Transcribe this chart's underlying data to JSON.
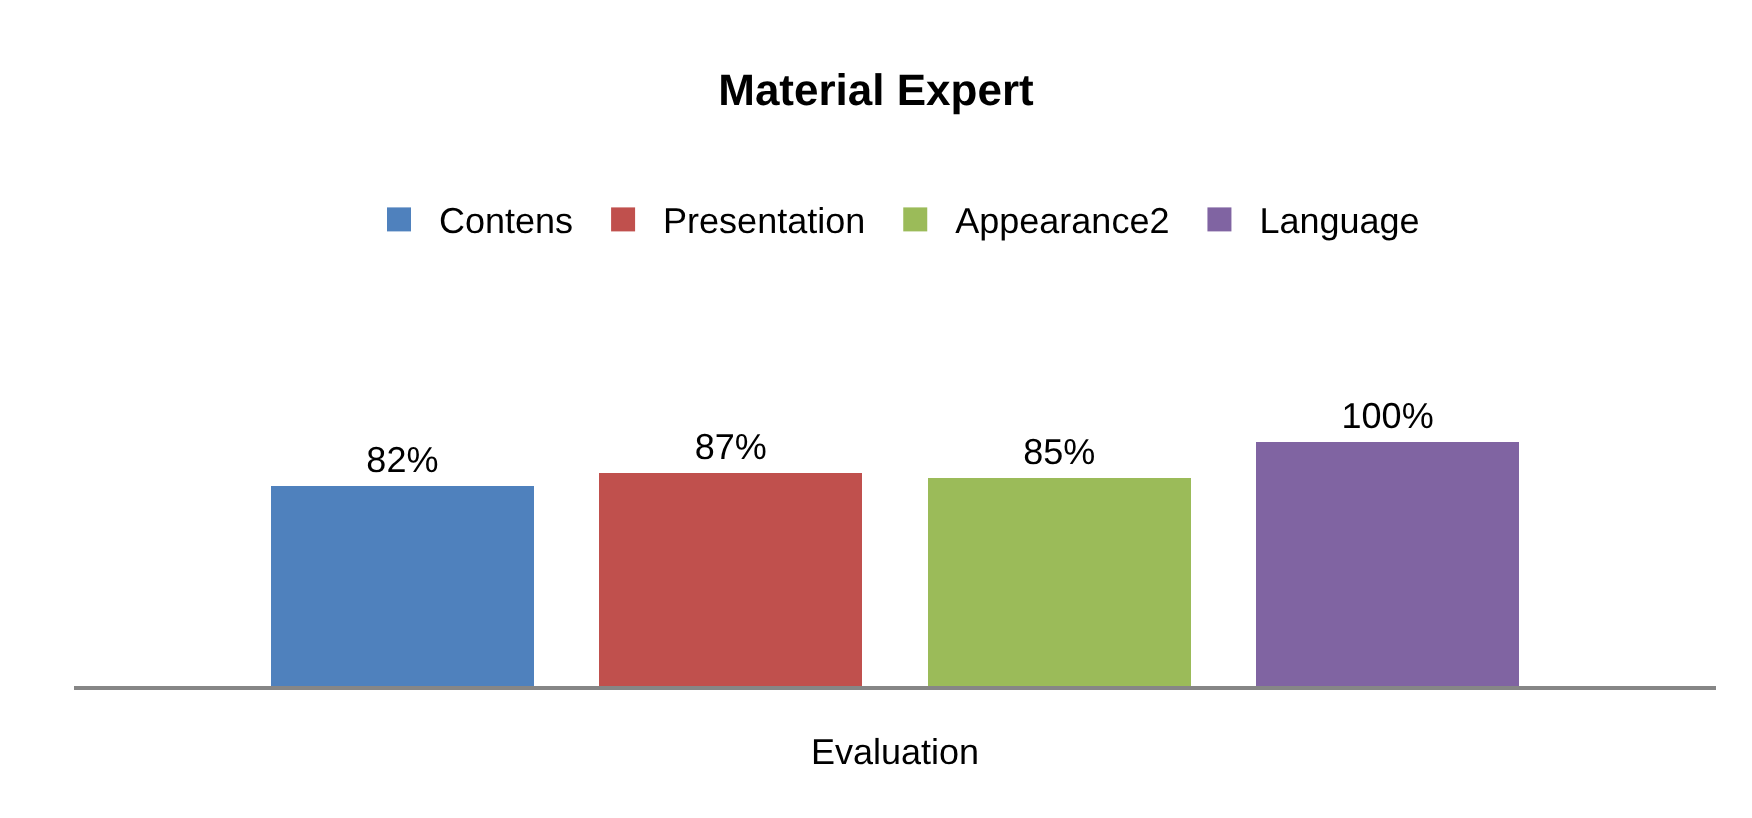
{
  "chart_data": {
    "type": "bar",
    "title": "Material Expert",
    "xlabel": "Evaluation",
    "categories": [
      null,
      null,
      null,
      null
    ],
    "stacked": true,
    "series": [
      {
        "name": "Contens",
        "color": "#4f81bd",
        "values": [
          82,
          null,
          null,
          null
        ],
        "value_labels": [
          "82%",
          null,
          null,
          null
        ]
      },
      {
        "name": "Presentation",
        "color": "#c0504d",
        "values": [
          null,
          87,
          null,
          null
        ],
        "value_labels": [
          null,
          "87%",
          null,
          null
        ]
      },
      {
        "name": "Appearance2",
        "color": "#9bbb59",
        "values": [
          null,
          null,
          85,
          null
        ],
        "value_labels": [
          null,
          null,
          "85%",
          null
        ]
      },
      {
        "name": "Language",
        "color": "#8064a2",
        "values": [
          null,
          null,
          null,
          100
        ],
        "value_labels": [
          null,
          null,
          null,
          "100%"
        ]
      }
    ],
    "legend": "top"
  }
}
